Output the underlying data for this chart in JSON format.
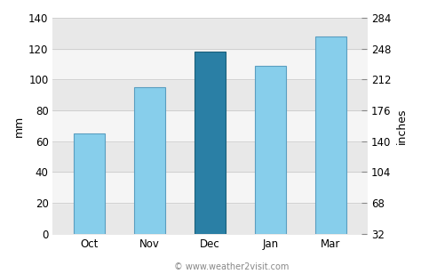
{
  "categories": [
    "Oct",
    "Nov",
    "Dec",
    "Jan",
    "Mar"
  ],
  "values": [
    65,
    95,
    118,
    109,
    128
  ],
  "bar_colors": [
    "#87CEEB",
    "#87CEEB",
    "#2a7fa5",
    "#87CEEB",
    "#87CEEB"
  ],
  "bar_edge_colors": [
    "#5a9ec0",
    "#5a9ec0",
    "#1a5f7a",
    "#5a9ec0",
    "#5a9ec0"
  ],
  "ylabel_left": "mm",
  "ylabel_right": "inches",
  "ylim_left": [
    0,
    140
  ],
  "ylim_right": [
    32,
    284
  ],
  "yticks_left": [
    0,
    20,
    40,
    60,
    80,
    100,
    120,
    140
  ],
  "yticks_right": [
    32,
    68,
    104,
    140,
    176,
    212,
    248,
    284
  ],
  "watermark": "© www.weather2visit.com",
  "bg_color": "#ffffff",
  "stripe_colors": [
    "#e8e8e8",
    "#f5f5f5"
  ],
  "grid_line_color": "#dddddd",
  "tick_fontsize": 8.5,
  "axis_fontsize": 9,
  "bar_width": 0.52
}
